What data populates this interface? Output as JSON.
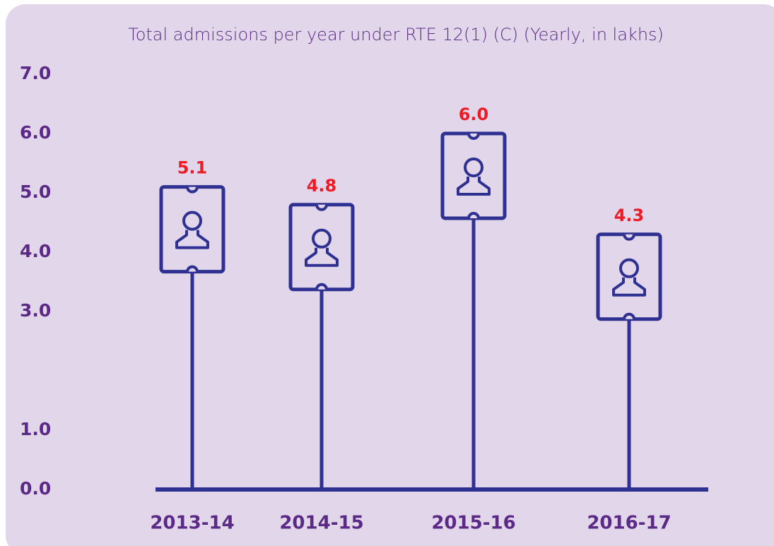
{
  "chart_data": {
    "type": "ticket-lollipop",
    "title": "Total admissions per year under RTE 12(1) (C) (Yearly, in lakhs)",
    "categories": [
      "2013-14",
      "2014-15",
      "2015-16",
      "2016-17"
    ],
    "values": [
      5.1,
      4.8,
      6.0,
      4.3
    ],
    "value_labels": [
      "5.1",
      "4.8",
      "6.0",
      "4.3"
    ],
    "color": "#2e3192",
    "label_color": "#ed1c24",
    "ylim": [
      0,
      7
    ],
    "yticks": [
      {
        "value": 0,
        "label": "0.0"
      },
      {
        "value": 1,
        "label": "1.0"
      },
      {
        "value": 3,
        "label": "3.0"
      },
      {
        "value": 4,
        "label": "4.0"
      },
      {
        "value": 5,
        "label": "5.0"
      },
      {
        "value": 6,
        "label": "6.0"
      },
      {
        "value": 7,
        "label": "7.0"
      }
    ]
  }
}
